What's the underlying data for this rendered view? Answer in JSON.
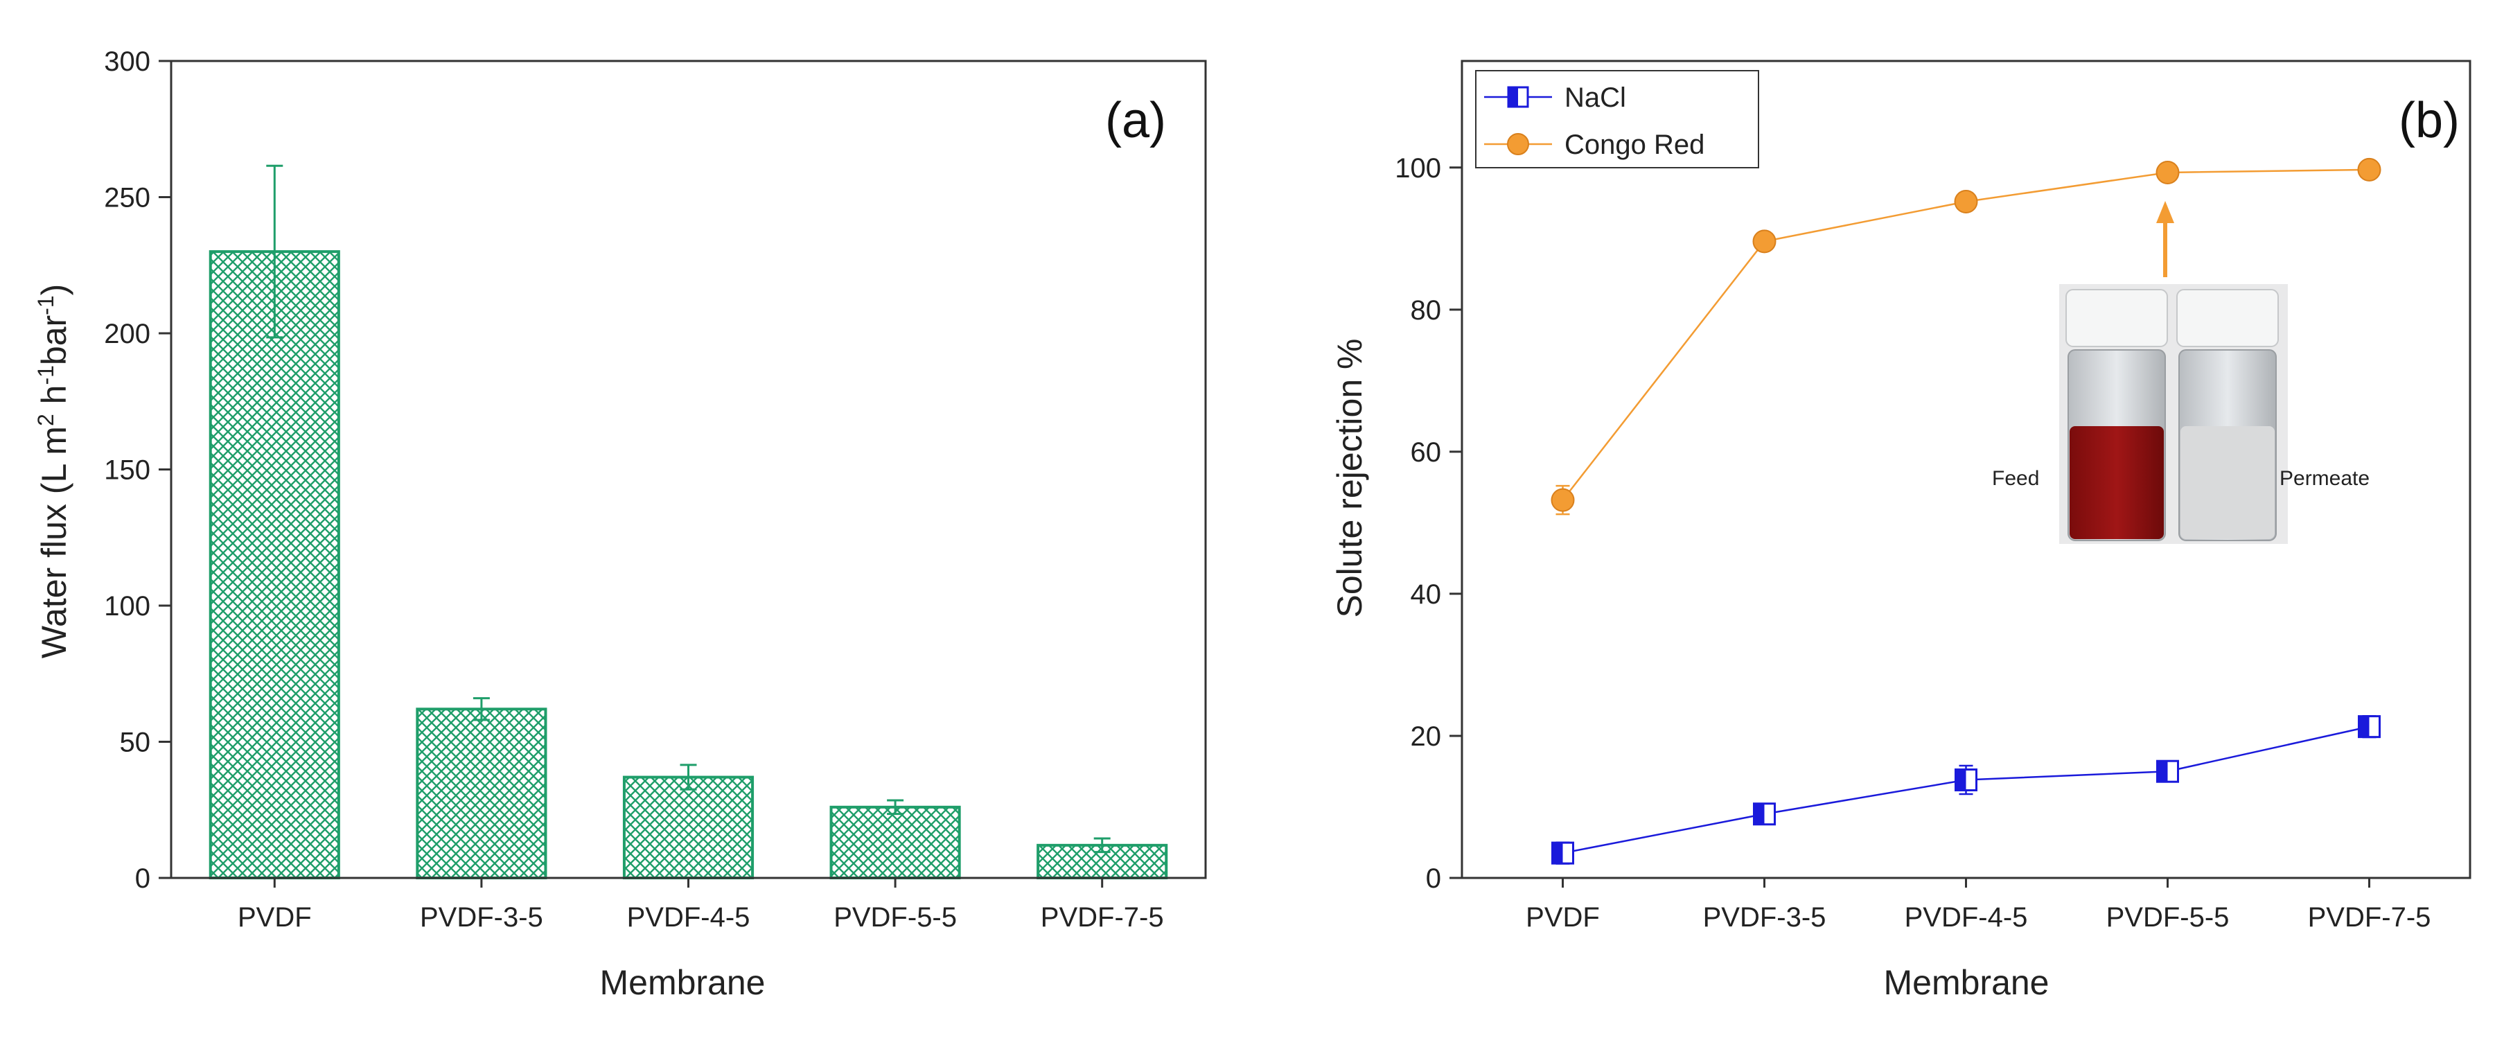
{
  "chart_data": [
    {
      "type": "bar",
      "panel_label": "(a)",
      "xlabel": "Membrane",
      "ylabel_parts": [
        "Water flux (L m",
        "2",
        " h",
        "-1",
        "bar",
        "-1",
        ")"
      ],
      "categories": [
        "PVDF",
        "PVDF-3-5",
        "PVDF-4-5",
        "PVDF-5-5",
        "PVDF-7-5"
      ],
      "values": [
        230,
        62,
        37,
        26,
        12
      ],
      "errors": [
        31.5,
        4,
        4.5,
        2.5,
        2.5
      ],
      "ylim": [
        0,
        300
      ],
      "yticks": [
        "0",
        "50",
        "100",
        "150",
        "200",
        "250",
        "300"
      ],
      "bar_color": "#1f9e6a",
      "grid": false
    },
    {
      "type": "line",
      "panel_label": "(b)",
      "xlabel": "Membrane",
      "ylabel": "Solute rejection %",
      "categories": [
        "PVDF",
        "PVDF-3-5",
        "PVDF-4-5",
        "PVDF-5-5",
        "PVDF-7-5"
      ],
      "ylim": [
        0,
        115
      ],
      "yticks": [
        "0",
        "20",
        "40",
        "60",
        "80",
        "100"
      ],
      "legend_position": "top-left",
      "grid": false,
      "series": [
        {
          "name": "NaCl",
          "values": [
            3.5,
            9,
            13.8,
            15,
            21.3
          ],
          "errors": [
            1.5,
            1.2,
            2,
            1.2,
            1.5
          ],
          "color": "#1a1adb",
          "marker": "half-filled-square"
        },
        {
          "name": "Congo Red",
          "values": [
            53.2,
            89.6,
            95.2,
            99.3,
            99.7
          ],
          "errors": [
            2,
            0.8,
            0.6,
            0.4,
            0.3
          ],
          "color": "#f39c33",
          "marker": "circle"
        }
      ],
      "inset": {
        "left_label": "Feed",
        "right_label": "Permeate",
        "annotation": "arrow-to-PVDF-5-5"
      }
    }
  ]
}
